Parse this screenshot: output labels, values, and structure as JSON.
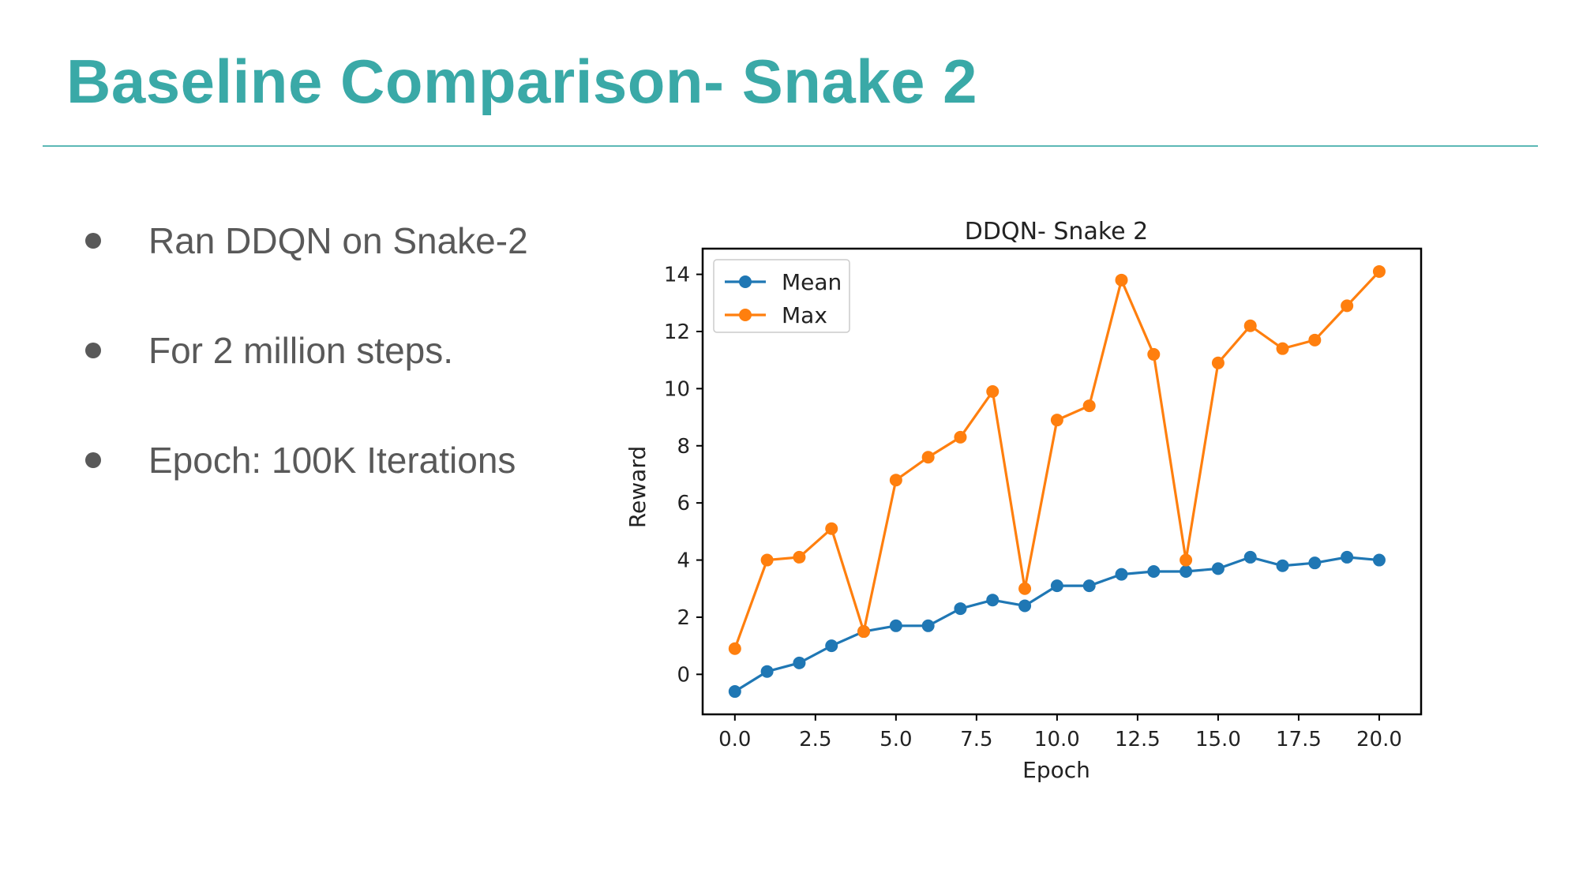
{
  "slide": {
    "title": "Baseline Comparison- Snake 2",
    "bullets": [
      "Ran DDQN on Snake-2",
      "For 2 million steps.",
      "Epoch: 100K Iterations"
    ],
    "accent_color": "#3aa9a7",
    "text_color": "#595959"
  },
  "chart_data": {
    "type": "line",
    "title": "DDQN- Snake 2",
    "xlabel": "Epoch",
    "ylabel": "Reward",
    "xlim": [
      -1,
      21.3
    ],
    "ylim": [
      -1.4,
      14.9
    ],
    "xticks": [
      0,
      2.5,
      5,
      7.5,
      10,
      12.5,
      15,
      17.5,
      20
    ],
    "xtick_labels": [
      "0.0",
      "2.5",
      "5.0",
      "7.5",
      "10.0",
      "12.5",
      "15.0",
      "17.5",
      "20.0"
    ],
    "yticks": [
      0,
      2,
      4,
      6,
      8,
      10,
      12,
      14
    ],
    "ytick_labels": [
      "0",
      "2",
      "4",
      "6",
      "8",
      "10",
      "12",
      "14"
    ],
    "grid": false,
    "legend_position": "top-left",
    "x": [
      0,
      1,
      2,
      3,
      4,
      5,
      6,
      7,
      8,
      9,
      10,
      11,
      12,
      13,
      14,
      15,
      16,
      17,
      18,
      19,
      20
    ],
    "series": [
      {
        "name": "Mean",
        "color": "#1f77b4",
        "values": [
          -0.6,
          0.1,
          0.4,
          1.0,
          1.5,
          1.7,
          1.7,
          2.3,
          2.6,
          2.4,
          3.1,
          3.1,
          3.5,
          3.6,
          3.6,
          3.7,
          4.1,
          3.8,
          3.9,
          4.1,
          4.0
        ]
      },
      {
        "name": "Max",
        "color": "#ff7f0e",
        "values": [
          0.9,
          4.0,
          4.1,
          5.1,
          1.5,
          6.8,
          7.6,
          8.3,
          9.9,
          3.0,
          8.9,
          9.4,
          13.8,
          11.2,
          4.0,
          10.9,
          12.2,
          11.4,
          11.7,
          12.9,
          14.1
        ]
      }
    ]
  }
}
